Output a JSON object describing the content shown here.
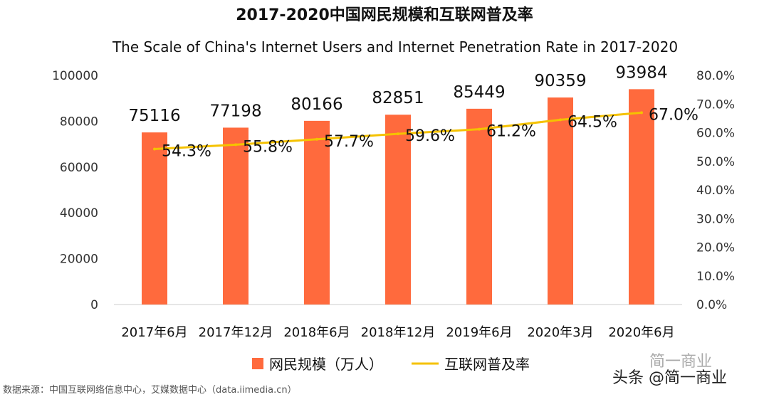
{
  "title": "2017-2020中国网民规模和互联网普及率",
  "subtitle": "The Scale of China's Internet Users and Internet Penetration Rate in 2017-2020",
  "source": "数据来源：中国互联网络信息中心，艾媒数据中心（data.iimedia.cn）",
  "watermark": {
    "main": "头条 @简一商业",
    "faint": "简一商业"
  },
  "colors": {
    "bar": "#FF6A3D",
    "line": "#F5C200",
    "axis": "#CCCCCC"
  },
  "chart_data": {
    "type": "bar",
    "categories": [
      "2017年6月",
      "2017年12月",
      "2018年6月",
      "2018年12月",
      "2019年6月",
      "2020年3月",
      "2020年6月"
    ],
    "series": [
      {
        "name": "网民规模（万人）",
        "type": "bar",
        "axis": "left",
        "values": [
          75116,
          77198,
          80166,
          82851,
          85449,
          90359,
          93984
        ],
        "labels": [
          "75116",
          "77198",
          "80166",
          "82851",
          "85449",
          "90359",
          "93984"
        ]
      },
      {
        "name": "互联网普及率",
        "type": "line",
        "axis": "right",
        "values": [
          54.3,
          55.8,
          57.7,
          59.6,
          61.2,
          64.5,
          67.0
        ],
        "labels": [
          "54.3%",
          "55.8%",
          "57.7%",
          "59.6%",
          "61.2%",
          "64.5%",
          "67.0%"
        ]
      }
    ],
    "y_left": {
      "ylim": [
        0,
        100000
      ],
      "ticks": [
        "0",
        "20000",
        "40000",
        "60000",
        "80000",
        "100000"
      ]
    },
    "y_right": {
      "ylim": [
        0,
        80
      ],
      "ticks": [
        "0.0%",
        "10.0%",
        "20.0%",
        "30.0%",
        "40.0%",
        "50.0%",
        "60.0%",
        "70.0%",
        "80.0%"
      ]
    },
    "legend_position": "bottom",
    "grid": false
  }
}
